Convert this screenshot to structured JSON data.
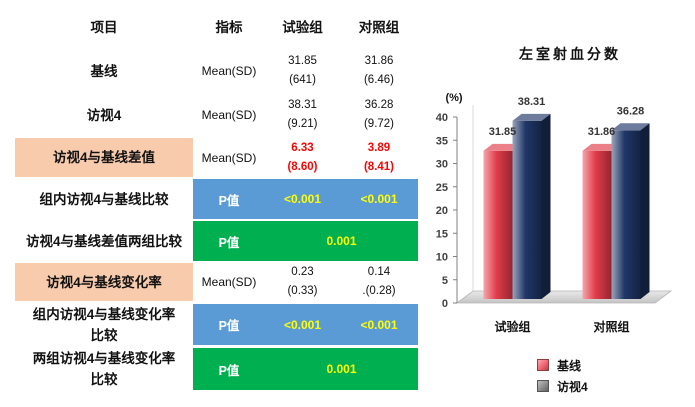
{
  "table": {
    "headers": {
      "item": "项目",
      "indicator": "指标",
      "test_group": "试验组",
      "control_group": "对照组"
    },
    "rows": [
      {
        "item": [
          "基线"
        ],
        "indicator": "Mean(SD)",
        "test_group": [
          "31.85",
          "(641)"
        ],
        "control_group": [
          "31.86",
          "(6.46)"
        ]
      },
      {
        "item": [
          "访视4"
        ],
        "indicator": "Mean(SD)",
        "test_group": [
          "38.31",
          "(9.21)"
        ],
        "control_group": [
          "36.28",
          "(9.72)"
        ]
      },
      {
        "item": [
          "访视4与基线差值"
        ],
        "indicator": "Mean(SD)",
        "test_group": [
          "6.33",
          "(8.60)"
        ],
        "control_group": [
          "3.89",
          "(8.41)"
        ]
      },
      {
        "item": [
          "组内访视4与基线比较"
        ],
        "indicator": "P值",
        "test_group": [
          "<0.001"
        ],
        "control_group": [
          "<0.001"
        ]
      },
      {
        "item": [
          "访视4与基线差值两组比较"
        ],
        "indicator": "P值",
        "between_groups": "0.001"
      },
      {
        "item": [
          "访视4与基线变化率"
        ],
        "indicator": "Mean(SD)",
        "test_group": [
          "0.23",
          "(0.33)"
        ],
        "control_group": [
          "0.14",
          ".(0.28)"
        ]
      },
      {
        "item": [
          "组内访视4与基线变化率",
          "比较"
        ],
        "indicator": "P值",
        "test_group": [
          "<0.001"
        ],
        "control_group": [
          "<0.001"
        ]
      },
      {
        "item": [
          "两组访视4与基线变化率",
          "比较"
        ],
        "indicator": "P值",
        "between_groups": "0.001"
      }
    ]
  },
  "colors": {
    "highlight_cell": "#F8CBAD",
    "within_group_p_cell": "#5B9BD5",
    "between_group_p_cell": "#00B050",
    "p_value_text": "#FFFF00",
    "difference_text": "#FF0000"
  },
  "chart_data": {
    "type": "bar",
    "title": "左室射血分数",
    "ylabel": "(%)",
    "categories": [
      "试验组",
      "对照组"
    ],
    "series": [
      {
        "name": "基线",
        "values": [
          31.85,
          31.86
        ],
        "color": "#E23B4A",
        "legend_color": "#F2626E"
      },
      {
        "name": "访视4",
        "values": [
          38.31,
          36.28
        ],
        "color": "#1F3667",
        "legend_color": "#8C8C8C"
      }
    ],
    "ylim": [
      0,
      40
    ],
    "yticks": [
      0,
      5,
      10,
      15,
      20,
      25,
      30,
      35,
      40
    ],
    "grid": false,
    "legend": "bottom"
  }
}
